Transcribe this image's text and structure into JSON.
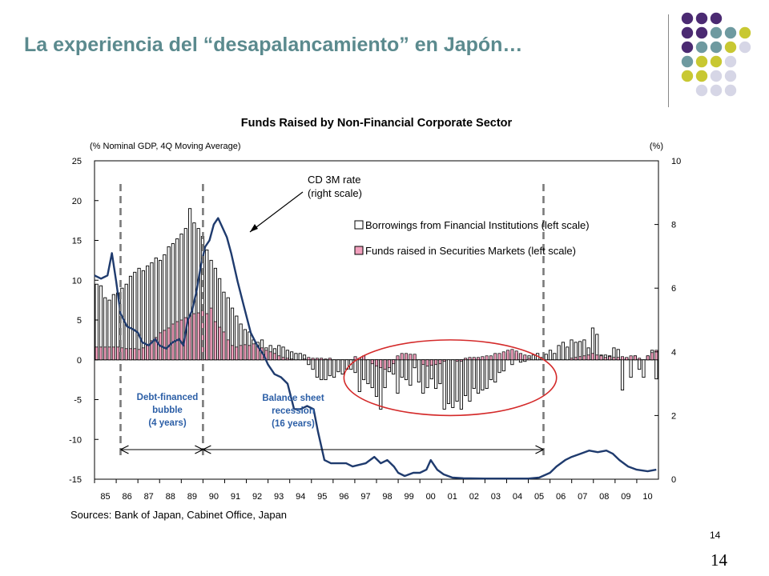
{
  "slide": {
    "title": "La experiencia del “desapalancamiento” en Japón…",
    "page_number": "14",
    "page_number_footer": "14",
    "title_color": "#5b8a8e"
  },
  "decor": {
    "dot_colors": [
      "#4b2a72",
      "#6e9aa0",
      "#c8c832",
      "#d6d6e6"
    ],
    "dot_grid": [
      [
        0,
        0,
        0,
        -1
      ],
      [
        0,
        0,
        1,
        1,
        2
      ],
      [
        0,
        1,
        1,
        2,
        3
      ],
      [
        1,
        2,
        2,
        3
      ],
      [
        2,
        2,
        3,
        3
      ],
      [
        -1,
        3,
        3,
        3
      ]
    ]
  },
  "chart_data": {
    "type": "bar",
    "title": "Funds Raised by Non-Financial Corporate Sector",
    "ylabel_left": "(% Nominal GDP, 4Q Moving Average)",
    "ylabel_right": "(%)",
    "ylim_left": [
      -15,
      25
    ],
    "ylim_right": [
      0,
      10
    ],
    "yticks_left": [
      25,
      20,
      15,
      10,
      5,
      0,
      -5,
      -10,
      -15
    ],
    "yticks_right": [
      10,
      8,
      6,
      4,
      2,
      0
    ],
    "x_labels": [
      "85",
      "86",
      "87",
      "88",
      "89",
      "90",
      "91",
      "92",
      "93",
      "94",
      "95",
      "96",
      "97",
      "98",
      "99",
      "00",
      "01",
      "02",
      "03",
      "04",
      "05",
      "06",
      "07",
      "08",
      "09",
      "10"
    ],
    "x_start": 1985,
    "source": "Sources: Bank of Japan, Cabinet Office, Japan",
    "legend": {
      "borrowings": "Borrowings from Financial Institutions (left scale)",
      "securities": "Funds raised in Securities Markets (left scale)"
    },
    "series": [
      {
        "name": "Borrowings from Financial Institutions (left scale)",
        "color": "#ffffff",
        "values": [
          9.5,
          9.3,
          7.8,
          7.5,
          8.2,
          8.4,
          9,
          9.5,
          10.5,
          11,
          11.5,
          11.2,
          11.8,
          12.2,
          12.8,
          12.5,
          13.2,
          14.2,
          14.6,
          15.2,
          15.8,
          16.5,
          19,
          17.2,
          16.5,
          15.5,
          13.8,
          12.5,
          11.5,
          10.2,
          8.5,
          7.8,
          6.5,
          5.5,
          4.5,
          3.8,
          3.5,
          2.5,
          2.2,
          2.5,
          1.5,
          1.8,
          1.4,
          1.8,
          1.6,
          1.2,
          1,
          0.8,
          0.8,
          0.6,
          -0.6,
          -1.2,
          -2.2,
          -2.5,
          -2.5,
          -2,
          -2.2,
          -1.5,
          -1.8,
          -1.2,
          -1.2,
          -1.6,
          -4,
          -2.5,
          -3,
          -3.5,
          -4.6,
          -6.2,
          -3.5,
          -1.5,
          -1.8,
          -4.2,
          -2.2,
          -2.5,
          -3.2,
          -1,
          -2.8,
          -4.2,
          -3.5,
          -2.4,
          -3.6,
          -3,
          -6.2,
          -5.5,
          -6,
          -5.2,
          -6.2,
          -4.5,
          -5.2,
          -3.6,
          -4.2,
          -3.8,
          -3.6,
          -2.5,
          -2.8,
          -1.6,
          -1.4,
          0.8,
          -0.6,
          0.8,
          -0.3,
          -0.2,
          0.5,
          0.6,
          0.8,
          0.3,
          0.7,
          1.2,
          0.8,
          1.8,
          2.2,
          1.6,
          2.5,
          2.2,
          2.3,
          2.5,
          1.5,
          4,
          3.2,
          0.6,
          0.6,
          0.5,
          1.5,
          1.3,
          -3.8,
          0.2,
          -2.2,
          0.5,
          -1.2,
          -2.2,
          0.5,
          1.2,
          -2.4
        ]
      },
      {
        "name": "Funds raised in Securities Markets (left scale)",
        "color": "#f2a0bd",
        "values": [
          1.6,
          1.6,
          1.6,
          1.6,
          1.6,
          1.6,
          1.5,
          1.4,
          1.4,
          1.4,
          1.3,
          1.5,
          1.8,
          2.4,
          2.8,
          3.4,
          3.7,
          4,
          4.5,
          4.8,
          5,
          5.3,
          5.5,
          5.8,
          5.9,
          6.2,
          5.8,
          6.5,
          4.8,
          4.1,
          3.5,
          2.5,
          1.8,
          1.6,
          1.8,
          1.9,
          1.8,
          2,
          1.8,
          1.5,
          1.2,
          1,
          0.8,
          0.5,
          0.3,
          0.2,
          0.1,
          0,
          0,
          0.1,
          0.3,
          0.2,
          0.2,
          0.2,
          0.1,
          0.2,
          0,
          0,
          0,
          0,
          0,
          0.4,
          0.2,
          0.5,
          0,
          -0.5,
          -0.8,
          -1,
          -1.2,
          -1,
          -0.5,
          0.5,
          0.8,
          0.8,
          0.7,
          0.7,
          0,
          -0.6,
          -0.8,
          -0.7,
          -0.6,
          -0.5,
          -0.2,
          0,
          0,
          -0.2,
          -0.2,
          0.2,
          0.3,
          0.3,
          0.3,
          0.4,
          0.5,
          0.5,
          0.8,
          0.8,
          1,
          1.2,
          1.3,
          1.1,
          0.8,
          0.6,
          0.2,
          0,
          0,
          0,
          0,
          0,
          0,
          0,
          0,
          0,
          0.2,
          0.3,
          0.4,
          0.5,
          0.6,
          0.8,
          0.6,
          0.5,
          0.3,
          0.4,
          0.3,
          0.3,
          0.4,
          0.3,
          0.5,
          0.5,
          0.2,
          0,
          0.5,
          0.9,
          1.2
        ]
      },
      {
        "name": "CD 3M rate",
        "axis": "right",
        "color": "#1f3b6e",
        "points": [
          [
            1985.0,
            6.4
          ],
          [
            1985.3,
            6.3
          ],
          [
            1985.6,
            6.4
          ],
          [
            1985.8,
            7.1
          ],
          [
            1986.0,
            6.2
          ],
          [
            1986.2,
            5.2
          ],
          [
            1986.5,
            4.8
          ],
          [
            1986.8,
            4.7
          ],
          [
            1987.0,
            4.6
          ],
          [
            1987.2,
            4.3
          ],
          [
            1987.5,
            4.2
          ],
          [
            1987.8,
            4.4
          ],
          [
            1988.0,
            4.2
          ],
          [
            1988.3,
            4.1
          ],
          [
            1988.6,
            4.3
          ],
          [
            1988.9,
            4.4
          ],
          [
            1989.1,
            4.2
          ],
          [
            1989.3,
            5.0
          ],
          [
            1989.5,
            5.3
          ],
          [
            1989.7,
            5.9
          ],
          [
            1989.9,
            6.7
          ],
          [
            1990.1,
            7.3
          ],
          [
            1990.3,
            7.5
          ],
          [
            1990.5,
            8.0
          ],
          [
            1990.7,
            8.2
          ],
          [
            1990.9,
            7.9
          ],
          [
            1991.1,
            7.6
          ],
          [
            1991.3,
            7.1
          ],
          [
            1991.6,
            6.2
          ],
          [
            1991.9,
            5.4
          ],
          [
            1992.2,
            4.6
          ],
          [
            1992.5,
            4.2
          ],
          [
            1992.8,
            3.9
          ],
          [
            1993.0,
            3.6
          ],
          [
            1993.3,
            3.3
          ],
          [
            1993.6,
            3.2
          ],
          [
            1993.9,
            3.0
          ],
          [
            1994.2,
            2.2
          ],
          [
            1994.5,
            2.2
          ],
          [
            1994.8,
            2.3
          ],
          [
            1995.1,
            2.2
          ],
          [
            1995.3,
            1.5
          ],
          [
            1995.6,
            0.6
          ],
          [
            1995.9,
            0.5
          ],
          [
            1996.3,
            0.5
          ],
          [
            1996.6,
            0.5
          ],
          [
            1996.9,
            0.4
          ],
          [
            1997.2,
            0.45
          ],
          [
            1997.5,
            0.5
          ],
          [
            1997.9,
            0.7
          ],
          [
            1998.2,
            0.5
          ],
          [
            1998.5,
            0.6
          ],
          [
            1998.8,
            0.4
          ],
          [
            1999.0,
            0.2
          ],
          [
            1999.3,
            0.1
          ],
          [
            1999.7,
            0.2
          ],
          [
            2000.0,
            0.2
          ],
          [
            2000.3,
            0.3
          ],
          [
            2000.5,
            0.6
          ],
          [
            2000.8,
            0.3
          ],
          [
            2001.1,
            0.15
          ],
          [
            2001.5,
            0.05
          ],
          [
            2002.0,
            0.03
          ],
          [
            2003.0,
            0.02
          ],
          [
            2004.0,
            0.02
          ],
          [
            2005.0,
            0.02
          ],
          [
            2005.5,
            0.05
          ],
          [
            2006.0,
            0.2
          ],
          [
            2006.3,
            0.4
          ],
          [
            2006.7,
            0.6
          ],
          [
            2007.0,
            0.7
          ],
          [
            2007.4,
            0.8
          ],
          [
            2007.8,
            0.9
          ],
          [
            2008.2,
            0.85
          ],
          [
            2008.6,
            0.9
          ],
          [
            2008.9,
            0.8
          ],
          [
            2009.2,
            0.6
          ],
          [
            2009.6,
            0.4
          ],
          [
            2010.0,
            0.3
          ],
          [
            2010.5,
            0.25
          ],
          [
            2010.9,
            0.3
          ]
        ]
      }
    ],
    "annotations": {
      "cd_rate_line1": "CD 3M rate",
      "cd_rate_line2": "(right scale)",
      "bubble_line1": "Debt-financed",
      "bubble_line2": "bubble",
      "bubble_line3": "(4 years)",
      "recession_line1": "Balance sheet",
      "recession_line2": "recession",
      "recession_line3": "(16 years)",
      "bubble_period": [
        1986.2,
        1990.0
      ],
      "recession_period": [
        1990.0,
        2005.7
      ],
      "recession_ellipse": [
        1996.5,
        2006.3,
        -7,
        2.5
      ],
      "annotation_color": "#2b5ea6",
      "ellipse_color": "#d42a2a"
    }
  }
}
